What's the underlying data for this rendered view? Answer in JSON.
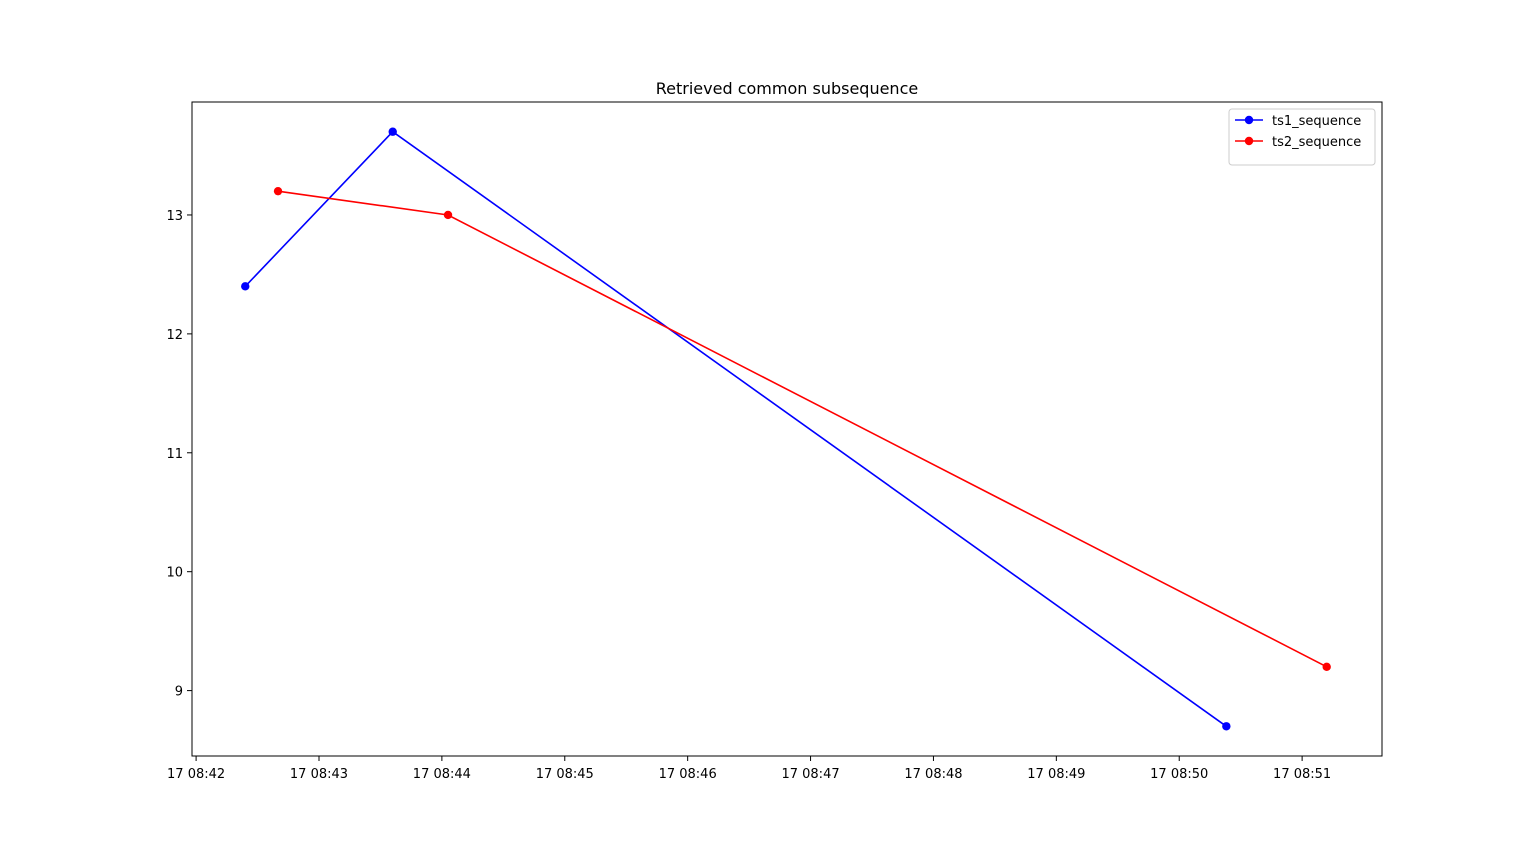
{
  "chart_data": {
    "type": "line",
    "title": "Retrieved common subsequence",
    "xlabel": "",
    "ylabel": "",
    "x_axis_type": "time",
    "x_ticks": [
      "17 08:42",
      "17 08:43",
      "17 08:44",
      "17 08:45",
      "17 08:46",
      "17 08:47",
      "17 08:48",
      "17 08:49",
      "17 08:50",
      "17 08:51"
    ],
    "y_ticks": [
      9,
      10,
      11,
      12,
      13
    ],
    "xlim": [
      "08:41:58",
      "08:51:39"
    ],
    "ylim": [
      8.45,
      13.95
    ],
    "grid": false,
    "legend_position": "top-right",
    "series": [
      {
        "name": "ts1_sequence",
        "color": "#0000ff",
        "marker": "circle",
        "x": [
          "08:42:24",
          "08:43:36",
          "08:50:23"
        ],
        "y": [
          12.4,
          13.7,
          8.7
        ]
      },
      {
        "name": "ts2_sequence",
        "color": "#ff0000",
        "marker": "circle",
        "x": [
          "08:42:40",
          "08:44:03",
          "08:51:12"
        ],
        "y": [
          13.2,
          13.0,
          9.2
        ]
      }
    ]
  }
}
